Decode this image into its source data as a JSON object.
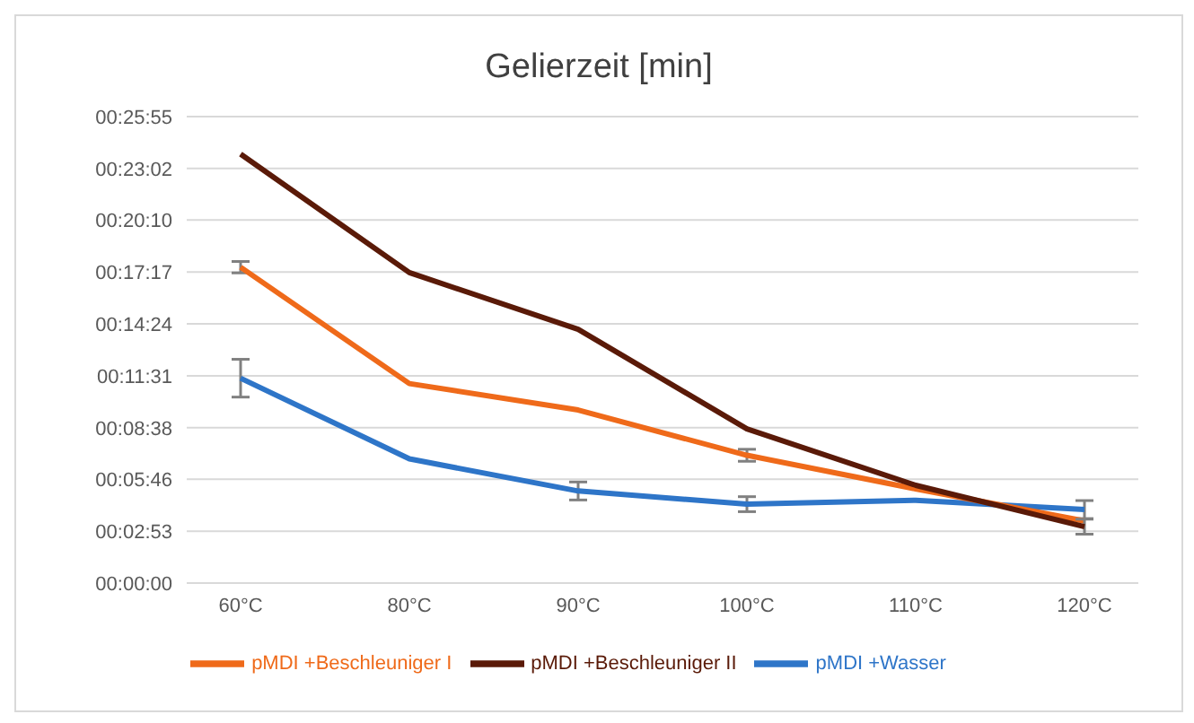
{
  "chart_data": {
    "type": "line",
    "title": "Gelierzeit [min]",
    "categories": [
      "60°C",
      "80°C",
      "90°C",
      "100°C",
      "110°C",
      "120°C"
    ],
    "series": [
      {
        "name": "pMDI +Wasser",
        "color": "#2e75c8",
        "values": [
          683,
          414,
          307,
          263,
          276,
          245
        ],
        "errors": [
          63,
          null,
          30,
          25,
          null,
          30
        ]
      },
      {
        "name": "pMDI +Beschleuniger I",
        "color": "#ef6a1a",
        "values": [
          1053,
          665,
          577,
          426,
          314,
          207
        ],
        "errors": [
          19,
          null,
          null,
          20,
          null,
          null
        ]
      },
      {
        "name": "pMDI +Beschleuniger II",
        "color": "#5a1a08",
        "values": [
          1430,
          1035,
          846,
          514,
          326,
          188
        ],
        "errors": [
          null,
          null,
          null,
          null,
          null,
          25
        ]
      }
    ],
    "ylim": [
      0,
      1555
    ],
    "yticks": [
      {
        "value": 0,
        "label": "00:00:00"
      },
      {
        "value": 173,
        "label": "00:02:53"
      },
      {
        "value": 346,
        "label": "00:05:46"
      },
      {
        "value": 518,
        "label": "00:08:38"
      },
      {
        "value": 691,
        "label": "00:11:31"
      },
      {
        "value": 864,
        "label": "00:14:24"
      },
      {
        "value": 1037,
        "label": "00:17:17"
      },
      {
        "value": 1210,
        "label": "00:20:10"
      },
      {
        "value": 1382,
        "label": "00:23:02"
      },
      {
        "value": 1555,
        "label": "00:25:55"
      }
    ],
    "grid": "y",
    "legend": "bottom",
    "marker": "none",
    "line_style": "solid"
  }
}
